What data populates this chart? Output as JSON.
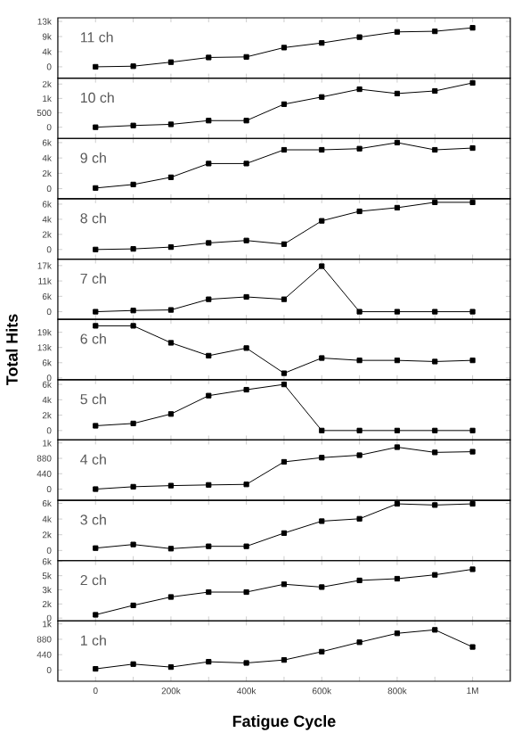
{
  "chart_data": [
    {
      "type": "line",
      "annotations": [
        "11 ch"
      ],
      "x": [
        0,
        100000,
        200000,
        300000,
        400000,
        500000,
        600000,
        700000,
        800000,
        900000,
        1000000
      ],
      "series": [
        {
          "color": "#000000",
          "values": [
            0,
            170,
            1330,
            2670,
            2830,
            5500,
            6830,
            8500,
            10000,
            10170,
            11170
          ]
        }
      ],
      "xlim": [
        -100000,
        1100000
      ],
      "ylim": [
        -3250,
        14030
      ],
      "yticks": [
        0,
        {
          "value": 4333,
          "label": "4k"
        },
        {
          "value": 8667,
          "label": "9k"
        },
        {
          "value": 13000,
          "label": "13k"
        }
      ],
      "tick_labels": "y",
      "marker": "square",
      "line_style": "solid"
    },
    {
      "type": "line",
      "annotations": [
        "10 ch"
      ],
      "x": [
        0,
        100000,
        200000,
        300000,
        400000,
        500000,
        600000,
        700000,
        800000,
        900000,
        1000000
      ],
      "series": [
        {
          "color": "#000000",
          "values": [
            0,
            60,
            100,
            230,
            230,
            800,
            1050,
            1320,
            1170,
            1260,
            1540
          ]
        }
      ],
      "xlim": [
        -100000,
        1100000
      ],
      "ylim": [
        -390,
        1705
      ],
      "yticks": [
        0,
        500,
        {
          "value": 1000,
          "label": "1k"
        },
        {
          "value": 1500,
          "label": "2k"
        }
      ],
      "tick_labels": "y",
      "marker": "square",
      "line_style": "solid"
    },
    {
      "type": "line",
      "annotations": [
        "9 ch"
      ],
      "x": [
        0,
        100000,
        200000,
        300000,
        400000,
        500000,
        600000,
        700000,
        800000,
        900000,
        1000000
      ],
      "series": [
        {
          "color": "#000000",
          "values": [
            80,
            540,
            1480,
            3270,
            3270,
            5060,
            5060,
            5210,
            6000,
            5060,
            5290
          ]
        }
      ],
      "xlim": [
        -100000,
        1100000
      ],
      "ylim": [
        -1320,
        6545
      ],
      "yticks": [
        0,
        {
          "value": 2000,
          "label": "2k"
        },
        {
          "value": 4000,
          "label": "4k"
        },
        {
          "value": 6000,
          "label": "6k"
        }
      ],
      "tick_labels": "y",
      "marker": "square",
      "line_style": "solid"
    },
    {
      "type": "line",
      "annotations": [
        "8 ch"
      ],
      "x": [
        0,
        100000,
        200000,
        300000,
        400000,
        500000,
        600000,
        700000,
        800000,
        900000,
        1000000
      ],
      "series": [
        {
          "color": "#000000",
          "values": [
            0,
            80,
            320,
            870,
            1190,
            710,
            3790,
            5050,
            5530,
            6240,
            6240
          ]
        }
      ],
      "xlim": [
        -100000,
        1100000
      ],
      "ylim": [
        -1265,
        6710
      ],
      "yticks": [
        0,
        {
          "value": 2000,
          "label": "2k"
        },
        {
          "value": 4000,
          "label": "4k"
        },
        {
          "value": 6000,
          "label": "6k"
        }
      ],
      "tick_labels": "y",
      "marker": "square",
      "line_style": "solid"
    },
    {
      "type": "line",
      "annotations": [
        "7 ch"
      ],
      "x": [
        0,
        100000,
        200000,
        300000,
        400000,
        500000,
        600000,
        700000,
        800000,
        900000,
        1000000
      ],
      "series": [
        {
          "color": "#000000",
          "values": [
            0,
            440,
            650,
            4580,
            5450,
            4580,
            16780,
            0,
            0,
            0,
            0
          ]
        }
      ],
      "xlim": [
        -100000,
        1100000
      ],
      "ylim": [
        -2830,
        19400
      ],
      "yticks": [
        0,
        {
          "value": 5667,
          "label": "6k"
        },
        {
          "value": 11333,
          "label": "11k"
        },
        {
          "value": 17000,
          "label": "17k"
        }
      ],
      "tick_labels": "y",
      "marker": "square",
      "line_style": "solid"
    },
    {
      "type": "line",
      "annotations": [
        "6 ch"
      ],
      "ylabel": "Total Hits",
      "x": [
        0,
        100000,
        200000,
        300000,
        400000,
        500000,
        600000,
        700000,
        800000,
        900000,
        1000000
      ],
      "series": [
        {
          "color": "#000000",
          "values": [
            21680,
            21680,
            14610,
            9260,
            12420,
            1950,
            8280,
            7310,
            7310,
            6820,
            7310
          ]
        }
      ],
      "xlim": [
        -100000,
        1100000
      ],
      "ylim": [
        -730,
        24360
      ],
      "yticks": [
        0,
        {
          "value": 6333,
          "label": "6k"
        },
        {
          "value": 12667,
          "label": "13k"
        },
        {
          "value": 19000,
          "label": "19k"
        }
      ],
      "tick_labels": "y",
      "marker": "square",
      "line_style": "solid"
    },
    {
      "type": "line",
      "annotations": [
        "5 ch"
      ],
      "x": [
        0,
        100000,
        200000,
        300000,
        400000,
        500000,
        600000,
        700000,
        800000,
        900000,
        1000000
      ],
      "series": [
        {
          "color": "#000000",
          "values": [
            620,
            920,
            2150,
            4540,
            5310,
            6000,
            0,
            0,
            0,
            0,
            0
          ]
        }
      ],
      "xlim": [
        -100000,
        1100000
      ],
      "ylim": [
        -1230,
        6615
      ],
      "yticks": [
        0,
        {
          "value": 2000,
          "label": "2k"
        },
        {
          "value": 4000,
          "label": "4k"
        },
        {
          "value": 6000,
          "label": "6k"
        }
      ],
      "tick_labels": "y",
      "marker": "square",
      "line_style": "solid"
    },
    {
      "type": "line",
      "annotations": [
        "4 ch"
      ],
      "x": [
        0,
        100000,
        200000,
        300000,
        400000,
        500000,
        600000,
        700000,
        800000,
        900000,
        1000000
      ],
      "series": [
        {
          "color": "#000000",
          "values": [
            0,
            68,
            100,
            120,
            135,
            780,
            900,
            970,
            1200,
            1050,
            1070
          ]
        }
      ],
      "xlim": [
        -100000,
        1100000
      ],
      "ylim": [
        -320,
        1405
      ],
      "yticks": [
        0,
        440,
        880,
        {
          "value": 1320,
          "label": "1k"
        }
      ],
      "tick_labels": "y",
      "marker": "square",
      "line_style": "solid"
    },
    {
      "type": "line",
      "annotations": [
        "3 ch"
      ],
      "x": [
        0,
        100000,
        200000,
        300000,
        400000,
        500000,
        600000,
        700000,
        800000,
        900000,
        1000000
      ],
      "series": [
        {
          "color": "#000000",
          "values": [
            300,
            760,
            230,
            530,
            530,
            2210,
            3730,
            4030,
            5930,
            5780,
            5930
          ]
        }
      ],
      "xlim": [
        -100000,
        1100000
      ],
      "ylim": [
        -1290,
        6380
      ],
      "yticks": [
        0,
        {
          "value": 2000,
          "label": "2k"
        },
        {
          "value": 4000,
          "label": "4k"
        },
        {
          "value": 6000,
          "label": "6k"
        }
      ],
      "tick_labels": "y",
      "marker": "square",
      "line_style": "solid"
    },
    {
      "type": "line",
      "annotations": [
        "2 ch"
      ],
      "x": [
        0,
        100000,
        200000,
        300000,
        400000,
        500000,
        600000,
        700000,
        800000,
        900000,
        1000000
      ],
      "series": [
        {
          "color": "#000000",
          "values": [
            350,
            1350,
            2240,
            2760,
            2760,
            3590,
            3290,
            4000,
            4180,
            4590,
            5180
          ]
        }
      ],
      "xlim": [
        -100000,
        1100000
      ],
      "ylim": [
        -300,
        6100
      ],
      "yticks": [
        0,
        {
          "value": 1500,
          "label": "2k"
        },
        {
          "value": 3000,
          "label": "3k"
        },
        {
          "value": 4500,
          "label": "5k"
        },
        {
          "value": 6000,
          "label": "6k"
        }
      ],
      "tick_labels": "y",
      "marker": "square",
      "line_style": "solid"
    },
    {
      "type": "line",
      "annotations": [
        "1 ch"
      ],
      "xlabel": "Fatigue Cycle",
      "x": [
        0,
        100000,
        200000,
        300000,
        400000,
        500000,
        600000,
        700000,
        800000,
        900000,
        1000000
      ],
      "series": [
        {
          "color": "#000000",
          "values": [
            34,
            170,
            85,
            237,
            203,
            288,
            525,
            795,
            1050,
            1150,
            660
          ]
        }
      ],
      "xlim": [
        -100000,
        1100000
      ],
      "ylim": [
        -320,
        1405
      ],
      "xticks": [
        0,
        {
          "value": 100000,
          "label": null
        },
        {
          "value": 200000,
          "label": "200k"
        },
        {
          "value": 300000,
          "label": null
        },
        {
          "value": 400000,
          "label": "400k"
        },
        {
          "value": 500000,
          "label": null
        },
        {
          "value": 600000,
          "label": "600k"
        },
        {
          "value": 700000,
          "label": null
        },
        {
          "value": 800000,
          "label": "800k"
        },
        {
          "value": 900000,
          "label": null
        },
        {
          "value": 1000000,
          "label": "1M"
        }
      ],
      "yticks": [
        0,
        440,
        880,
        {
          "value": 1320,
          "label": "1k"
        }
      ],
      "marker": "square",
      "line_style": "solid"
    }
  ]
}
